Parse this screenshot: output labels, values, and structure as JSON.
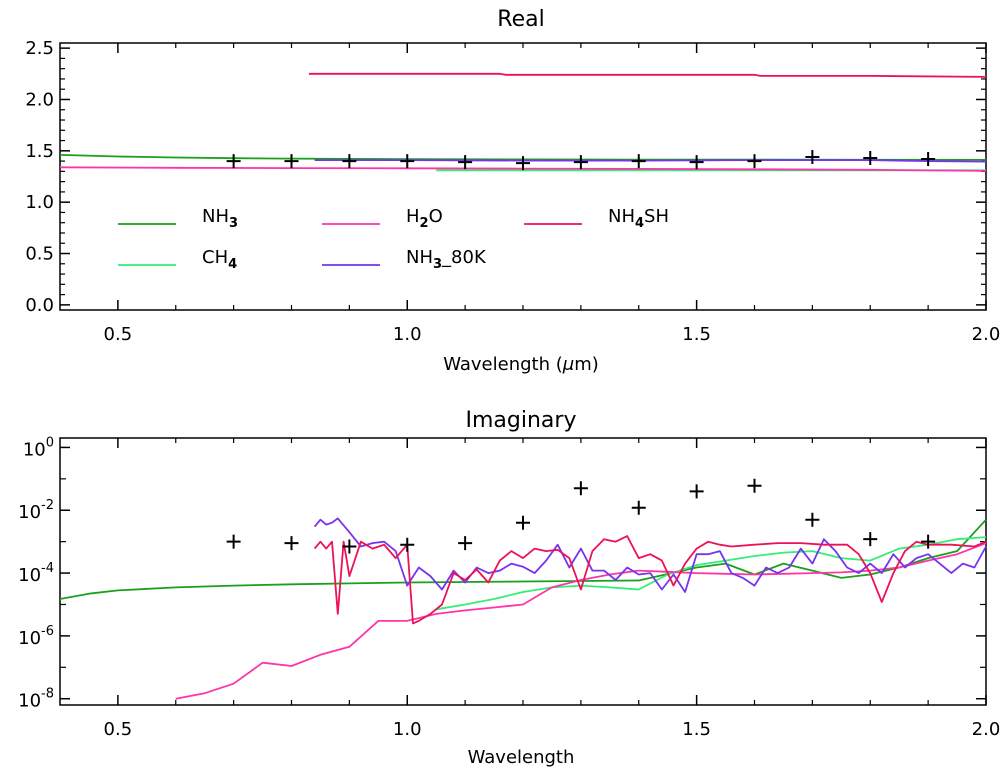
{
  "chart_data": [
    {
      "type": "line",
      "title": "Real",
      "xlabel_parts": [
        "Wavelength (",
        "μ",
        "m)"
      ],
      "ylabel": "",
      "xlim": [
        0.4,
        2.0
      ],
      "ylim": [
        -0.05,
        2.55
      ],
      "x_ticks": [
        0.5,
        1.0,
        1.5,
        2.0
      ],
      "x_tick_labels": [
        "0.5",
        "1.0",
        "1.5",
        "2.0"
      ],
      "y_ticks": [
        0.0,
        0.5,
        1.0,
        1.5,
        2.0,
        2.5
      ],
      "y_tick_labels": [
        "0.0",
        "0.5",
        "1.0",
        "1.5",
        "2.0",
        "2.5"
      ],
      "legend": [
        {
          "base": "NH",
          "sub": "3",
          "rest": "",
          "color": "#1aa01a"
        },
        {
          "base": "CH",
          "sub": "4",
          "rest": "",
          "color": "#33ee77"
        },
        {
          "base": "H",
          "sub": "2",
          "rest": "O",
          "color": "#ff33aa"
        },
        {
          "base": "NH",
          "sub": "3",
          "rest": "_80K",
          "color": "#7733ee"
        },
        {
          "base": "NH",
          "sub": "4",
          "rest": "SH",
          "color": "#ee1155"
        }
      ],
      "series": [
        {
          "color": "#1aa01a",
          "x": [
            0.4,
            0.5,
            0.6,
            0.7,
            0.8,
            0.9,
            1.0,
            1.2,
            1.4,
            1.6,
            1.8,
            2.0
          ],
          "y": [
            1.46,
            1.445,
            1.435,
            1.428,
            1.424,
            1.421,
            1.419,
            1.417,
            1.415,
            1.414,
            1.413,
            1.412
          ]
        },
        {
          "color": "#33ee77",
          "x": [
            1.05,
            1.2,
            1.4,
            1.6,
            1.8,
            2.0
          ],
          "y": [
            1.31,
            1.31,
            1.31,
            1.31,
            1.31,
            1.31
          ]
        },
        {
          "color": "#ff33aa",
          "x": [
            0.4,
            0.6,
            0.8,
            1.0,
            1.2,
            1.4,
            1.6,
            1.8,
            2.0
          ],
          "y": [
            1.34,
            1.335,
            1.332,
            1.33,
            1.327,
            1.324,
            1.32,
            1.315,
            1.305
          ]
        },
        {
          "color": "#7733ee",
          "x": [
            0.84,
            1.0,
            1.2,
            1.4,
            1.6,
            1.7,
            1.8,
            1.9,
            2.0
          ],
          "y": [
            1.41,
            1.41,
            1.405,
            1.405,
            1.41,
            1.41,
            1.41,
            1.4,
            1.395
          ]
        },
        {
          "color": "#ee1155",
          "x": [
            0.83,
            1.0,
            1.16,
            1.17,
            1.6,
            1.61,
            1.8,
            2.0
          ],
          "y": [
            2.25,
            2.25,
            2.25,
            2.24,
            2.24,
            2.23,
            2.23,
            2.22
          ]
        }
      ],
      "markers": {
        "x": [
          0.7,
          0.8,
          0.9,
          1.0,
          1.1,
          1.2,
          1.3,
          1.4,
          1.5,
          1.6,
          1.7,
          1.8,
          1.9
        ],
        "y": [
          1.4,
          1.4,
          1.4,
          1.4,
          1.39,
          1.38,
          1.39,
          1.4,
          1.39,
          1.4,
          1.44,
          1.43,
          1.42
        ]
      }
    },
    {
      "type": "line",
      "title": "Imaginary",
      "xlabel": "Wavelength",
      "ylabel": "",
      "xlim": [
        0.4,
        2.0
      ],
      "ylim_log10": [
        -8.2,
        0.3
      ],
      "y_scale": "log",
      "x_ticks": [
        0.5,
        1.0,
        1.5,
        2.0
      ],
      "x_tick_labels": [
        "0.5",
        "1.0",
        "1.5",
        "2.0"
      ],
      "y_ticks_exp": [
        0,
        -2,
        -4,
        -6,
        -8
      ],
      "y_tick_base": "10",
      "y_tick_exp_labels": [
        "0",
        "-2",
        "-4",
        "-6",
        "-8"
      ],
      "series": [
        {
          "color": "#1aa01a",
          "x": [
            0.4,
            0.45,
            0.5,
            0.6,
            0.7,
            0.8,
            0.9,
            1.0,
            1.1,
            1.2,
            1.3,
            1.4,
            1.5,
            1.55,
            1.6,
            1.65,
            1.7,
            1.75,
            1.8,
            1.85,
            1.9,
            1.95,
            2.0
          ],
          "y": [
            1.5e-05,
            2.2e-05,
            2.8e-05,
            3.5e-05,
            4e-05,
            4.4e-05,
            4.7e-05,
            5e-05,
            5.2e-05,
            5.4e-05,
            5.6e-05,
            5.8e-05,
            0.00015,
            0.0002,
            9e-05,
            0.0002,
            0.00012,
            7e-05,
            9e-05,
            0.00015,
            0.0003,
            0.0005,
            0.005
          ]
        },
        {
          "color": "#33ee77",
          "x": [
            1.05,
            1.1,
            1.15,
            1.2,
            1.25,
            1.3,
            1.35,
            1.4,
            1.45,
            1.5,
            1.55,
            1.6,
            1.65,
            1.7,
            1.75,
            1.8,
            1.85,
            1.9,
            1.95,
            2.0
          ],
          "y": [
            7e-06,
            1e-05,
            1.5e-05,
            2.5e-05,
            3.5e-05,
            4e-05,
            3.5e-05,
            3e-05,
            9e-05,
            0.00018,
            0.00025,
            0.00035,
            0.00045,
            0.0005,
            0.0003,
            0.00025,
            0.0006,
            0.0008,
            0.0012,
            0.0014
          ]
        },
        {
          "color": "#ff33aa",
          "x": [
            0.6,
            0.65,
            0.7,
            0.75,
            0.8,
            0.85,
            0.9,
            0.95,
            1.0,
            1.05,
            1.1,
            1.15,
            1.2,
            1.25,
            1.3,
            1.35,
            1.4,
            1.45,
            1.5,
            1.55,
            1.6,
            1.65,
            1.7,
            1.75,
            1.8,
            1.85,
            1.9,
            1.95,
            2.0
          ],
          "y": [
            1e-08,
            1.5e-08,
            3e-08,
            1.4e-07,
            1.1e-07,
            2.5e-07,
            4.5e-07,
            3e-06,
            3e-06,
            5e-06,
            6.5e-06,
            8e-06,
            1e-05,
            3.5e-05,
            6e-05,
            9e-05,
            0.00012,
            0.00011,
            0.0001,
            9.5e-05,
            9e-05,
            9.5e-05,
            0.0001,
            0.000105,
            0.00012,
            0.00015,
            0.00025,
            0.0004,
            0.0009
          ]
        },
        {
          "color": "#7733ee",
          "x": [
            0.84,
            0.85,
            0.86,
            0.87,
            0.88,
            0.9,
            0.92,
            0.94,
            0.96,
            0.98,
            1.0,
            1.02,
            1.04,
            1.06,
            1.08,
            1.1,
            1.12,
            1.14,
            1.16,
            1.18,
            1.2,
            1.22,
            1.24,
            1.26,
            1.28,
            1.3,
            1.32,
            1.34,
            1.36,
            1.38,
            1.4,
            1.42,
            1.44,
            1.46,
            1.48,
            1.5,
            1.52,
            1.54,
            1.56,
            1.58,
            1.6,
            1.62,
            1.64,
            1.66,
            1.68,
            1.7,
            1.72,
            1.74,
            1.76,
            1.78,
            1.8,
            1.82,
            1.84,
            1.86,
            1.88,
            1.9,
            1.92,
            1.94,
            1.96,
            1.98,
            2.0
          ],
          "y": [
            0.003,
            0.005,
            0.0035,
            0.004,
            0.0055,
            0.002,
            0.0007,
            0.0009,
            0.001,
            0.0005,
            4e-05,
            0.00015,
            8e-05,
            3e-05,
            0.00012,
            5e-05,
            0.00015,
            0.0001,
            0.00012,
            0.0002,
            0.00016,
            0.0001,
            0.00025,
            0.0008,
            0.00015,
            0.0006,
            0.00012,
            0.00012,
            6e-05,
            0.00015,
            9e-05,
            0.0001,
            3e-05,
            9e-05,
            2.5e-05,
            0.0004,
            0.0004,
            0.0005,
            0.0001,
            7e-05,
            4e-05,
            0.00015,
            0.0001,
            0.00015,
            0.0006,
            0.0002,
            0.0012,
            0.0005,
            0.00015,
            0.0001,
            0.0002,
            0.0001,
            0.0004,
            0.00015,
            0.0003,
            0.0004,
            0.0002,
            0.0001,
            0.0002,
            0.00015,
            0.0007
          ]
        },
        {
          "color": "#ee1155",
          "x": [
            0.84,
            0.85,
            0.86,
            0.87,
            0.88,
            0.89,
            0.9,
            0.92,
            0.94,
            0.96,
            0.98,
            1.0,
            1.01,
            1.02,
            1.04,
            1.06,
            1.08,
            1.1,
            1.12,
            1.14,
            1.16,
            1.18,
            1.2,
            1.22,
            1.24,
            1.26,
            1.28,
            1.3,
            1.32,
            1.34,
            1.36,
            1.38,
            1.4,
            1.42,
            1.44,
            1.46,
            1.48,
            1.5,
            1.52,
            1.54,
            1.56,
            1.6,
            1.64,
            1.68,
            1.72,
            1.76,
            1.78,
            1.8,
            1.82,
            1.84,
            1.86,
            1.88,
            1.9,
            1.94,
            1.98,
            2.0
          ],
          "y": [
            0.0006,
            0.001,
            0.0006,
            0.001,
            5e-06,
            0.001,
            8e-05,
            0.001,
            0.0006,
            0.0008,
            0.0003,
            0.0008,
            2.5e-06,
            3e-06,
            5e-06,
            1e-05,
            0.0001,
            6e-05,
            0.00013,
            5e-05,
            0.00025,
            0.0005,
            0.0003,
            0.0006,
            0.0005,
            0.00055,
            0.0003,
            3e-05,
            0.0005,
            0.0012,
            0.001,
            0.0015,
            0.0003,
            0.0004,
            0.00025,
            4e-05,
            0.0002,
            0.0006,
            0.001,
            0.0008,
            0.0007,
            0.0008,
            0.0009,
            0.0009,
            0.0008,
            0.0008,
            0.0004,
            0.0001,
            1.2e-05,
            0.0001,
            0.0005,
            0.001,
            0.0008,
            0.0008,
            0.0007,
            0.001
          ]
        }
      ],
      "markers": {
        "x": [
          0.7,
          0.8,
          0.9,
          1.0,
          1.1,
          1.2,
          1.3,
          1.4,
          1.5,
          1.6,
          1.7,
          1.8,
          1.9
        ],
        "y": [
          0.001,
          0.0009,
          0.0007,
          0.0008,
          0.0009,
          0.004,
          0.05,
          0.012,
          0.04,
          0.06,
          0.005,
          0.0012,
          0.001
        ]
      }
    }
  ]
}
